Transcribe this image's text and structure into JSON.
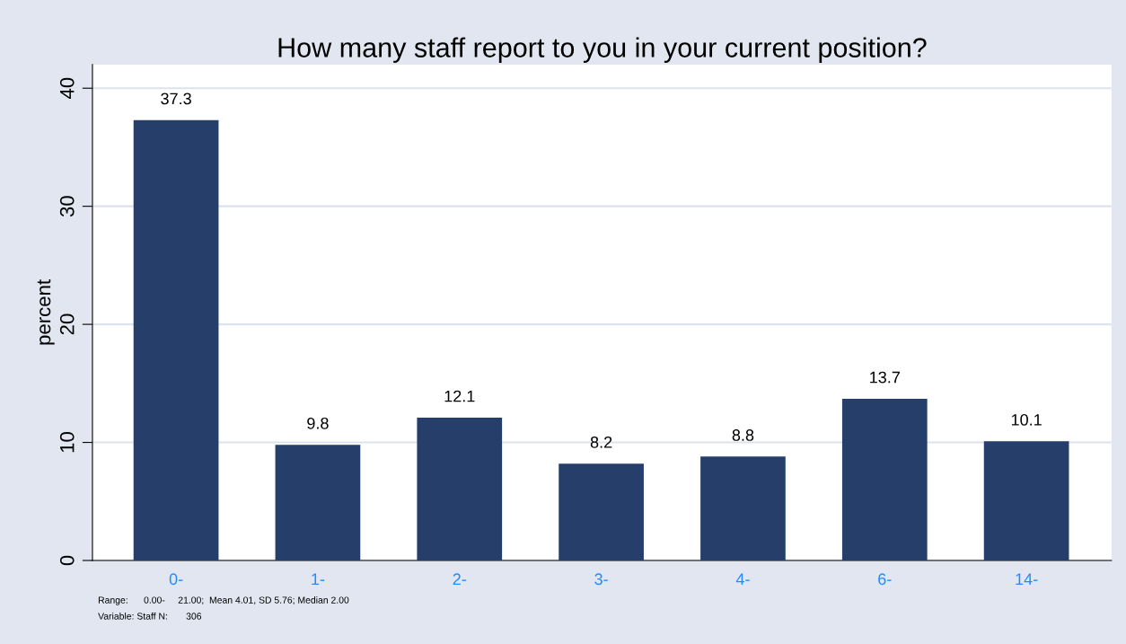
{
  "chart_data": {
    "type": "bar",
    "title": "How many staff report to you in your current position?",
    "ylabel": "percent",
    "categories": [
      "0-",
      "1-",
      "2-",
      "3-",
      "4-",
      "6-",
      "14-"
    ],
    "values": [
      37.3,
      9.8,
      12.1,
      8.2,
      8.8,
      13.7,
      10.1
    ],
    "color": "#263f6a",
    "data_labels": true,
    "ylim": [
      0,
      42
    ],
    "yticks": [
      0,
      10,
      20,
      30,
      40
    ],
    "grid": "y",
    "legend": false,
    "annotations": [
      "Range:      0.00-     21.00;  Mean 4.01, SD 5.76; Median 2.00",
      "Variable: Staff N:       306"
    ]
  }
}
